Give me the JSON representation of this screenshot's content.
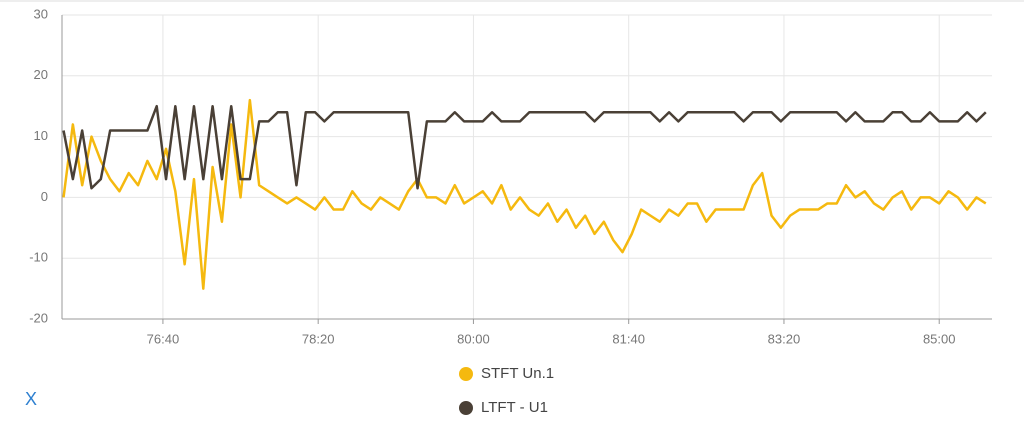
{
  "chart_data": {
    "type": "line",
    "x": [
      4536,
      4542,
      4548,
      4554,
      4560,
      4566,
      4572,
      4578,
      4584,
      4590,
      4596,
      4602,
      4608,
      4614,
      4620,
      4626,
      4632,
      4638,
      4644,
      4650,
      4656,
      4662,
      4668,
      4674,
      4680,
      4686,
      4692,
      4698,
      4704,
      4710,
      4716,
      4722,
      4728,
      4734,
      4740,
      4746,
      4752,
      4758,
      4764,
      4770,
      4776,
      4782,
      4788,
      4794,
      4800,
      4806,
      4812,
      4818,
      4824,
      4830,
      4836,
      4842,
      4848,
      4854,
      4860,
      4866,
      4872,
      4878,
      4884,
      4890,
      4896,
      4902,
      4908,
      4914,
      4920,
      4926,
      4932,
      4938,
      4944,
      4950,
      4956,
      4962,
      4968,
      4974,
      4980,
      4986,
      4992,
      4998,
      5004,
      5010,
      5016,
      5022,
      5028,
      5034,
      5040,
      5046,
      5052,
      5058,
      5064,
      5070,
      5076,
      5082,
      5088,
      5094,
      5100,
      5106,
      5112,
      5118,
      5124,
      5130
    ],
    "series": [
      {
        "name": "STFT Un.1",
        "color": "#f5b90f",
        "values": [
          0,
          12,
          2,
          10,
          6,
          3,
          1,
          4,
          2,
          6,
          3,
          8,
          1,
          -11,
          3,
          -15,
          5,
          -4,
          12,
          0,
          16,
          2,
          1,
          0,
          -1,
          0,
          -1,
          -2,
          0,
          -2,
          -2,
          1,
          -1,
          -2,
          0,
          -1,
          -2,
          1,
          3,
          0,
          0,
          -1,
          2,
          -1,
          0,
          1,
          -1,
          2,
          -2,
          0,
          -2,
          -3,
          -1,
          -4,
          -2,
          -5,
          -3,
          -6,
          -4,
          -7,
          -9,
          -6,
          -2,
          -3,
          -4,
          -2,
          -3,
          -1,
          -1,
          -4,
          -2,
          -2,
          -2,
          -2,
          2,
          4,
          -3,
          -5,
          -3,
          -2,
          -2,
          -2,
          -1,
          -1,
          2,
          0,
          1,
          -1,
          -2,
          0,
          1,
          -2,
          0,
          0,
          -1,
          1,
          0,
          -2,
          0,
          -1
        ]
      },
      {
        "name": "LTFT - U1",
        "color": "#4a4036",
        "values": [
          11,
          3,
          11,
          1.5,
          3,
          11,
          11,
          11,
          11,
          11,
          15,
          3,
          15,
          3,
          15,
          3,
          15,
          3,
          15,
          3,
          3,
          12.5,
          12.5,
          14,
          14,
          2,
          14,
          14,
          12.5,
          14,
          14,
          14,
          14,
          14,
          14,
          14,
          14,
          14,
          1.5,
          12.5,
          12.5,
          12.5,
          14,
          12.5,
          12.5,
          12.5,
          14,
          12.5,
          12.5,
          12.5,
          14,
          14,
          14,
          14,
          14,
          14,
          14,
          12.5,
          14,
          14,
          14,
          14,
          14,
          14,
          12.5,
          14,
          12.5,
          14,
          14,
          14,
          14,
          14,
          14,
          12.5,
          14,
          14,
          14,
          12.5,
          14,
          14,
          14,
          14,
          14,
          14,
          12.5,
          14,
          12.5,
          12.5,
          12.5,
          14,
          14,
          12.5,
          12.5,
          14,
          12.5,
          12.5,
          12.5,
          14,
          12.5,
          14
        ]
      }
    ],
    "xlim": [
      4535,
      5134
    ],
    "xticks": [
      {
        "value": 4600,
        "label": "76:40"
      },
      {
        "value": 4700,
        "label": "78:20"
      },
      {
        "value": 4800,
        "label": "80:00"
      },
      {
        "value": 4900,
        "label": "81:40"
      },
      {
        "value": 5000,
        "label": "83:20"
      },
      {
        "value": 5100,
        "label": "85:00"
      }
    ],
    "ylim": [
      -20,
      30
    ],
    "yticks": [
      -20,
      -10,
      0,
      10,
      20,
      30
    ],
    "grid": true
  },
  "close_button": "X"
}
